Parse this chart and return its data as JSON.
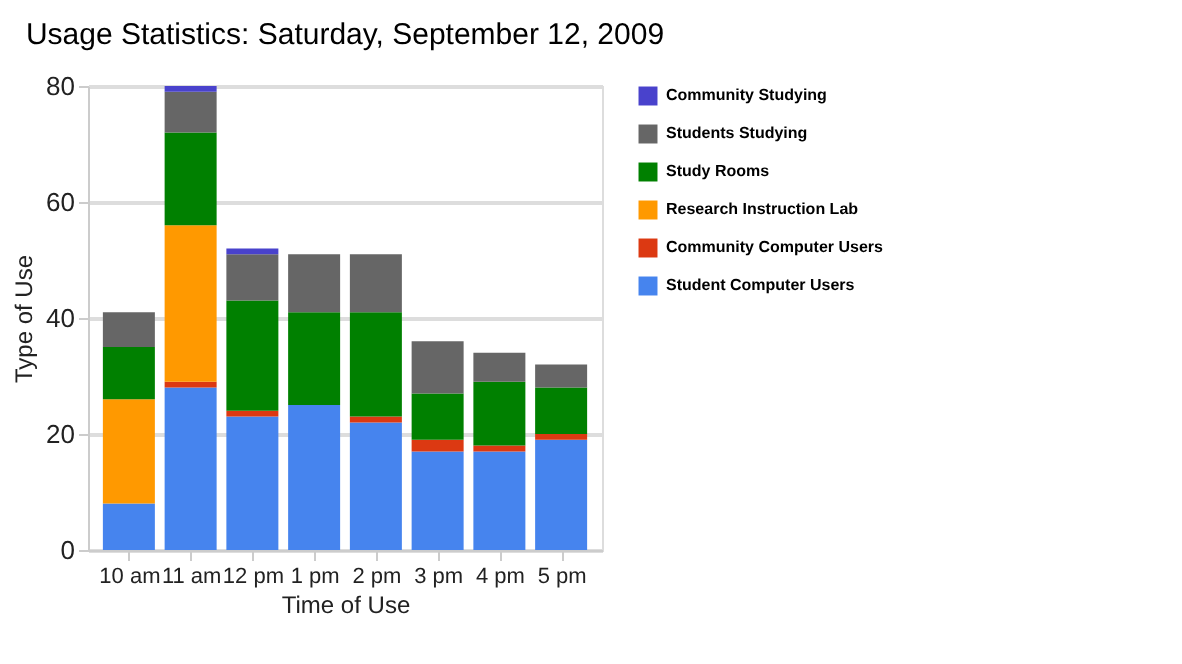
{
  "chart_data": {
    "type": "bar",
    "stacked": true,
    "title": "Usage Statistics: Saturday, September 12, 2009",
    "xlabel": "Time of Use",
    "ylabel": "Type of Use",
    "categories": [
      "10 am",
      "11 am",
      "12 pm",
      "1 pm",
      "2 pm",
      "3 pm",
      "4 pm",
      "5 pm"
    ],
    "series": [
      {
        "name": "Student Computer Users",
        "color": "#4684ee",
        "values": [
          8,
          28,
          23,
          25,
          22,
          17,
          17,
          19
        ]
      },
      {
        "name": "Community Computer Users",
        "color": "#dc3912",
        "values": [
          0,
          1,
          1,
          0,
          1,
          2,
          1,
          1
        ]
      },
      {
        "name": "Research Instruction Lab",
        "color": "#ff9900",
        "values": [
          18,
          27,
          0,
          0,
          0,
          0,
          0,
          0
        ]
      },
      {
        "name": "Study Rooms",
        "color": "#008000",
        "values": [
          9,
          16,
          19,
          16,
          18,
          8,
          11,
          8
        ]
      },
      {
        "name": "Students Studying",
        "color": "#666666",
        "values": [
          6,
          7,
          8,
          10,
          10,
          9,
          5,
          4
        ]
      },
      {
        "name": "Community Studying",
        "color": "#4942cc",
        "values": [
          0,
          1,
          1,
          0,
          0,
          0,
          0,
          0
        ]
      }
    ],
    "ylim": [
      0,
      80
    ],
    "yticks": [
      0,
      20,
      40,
      60,
      80
    ],
    "grid": "y",
    "legend": "right"
  }
}
